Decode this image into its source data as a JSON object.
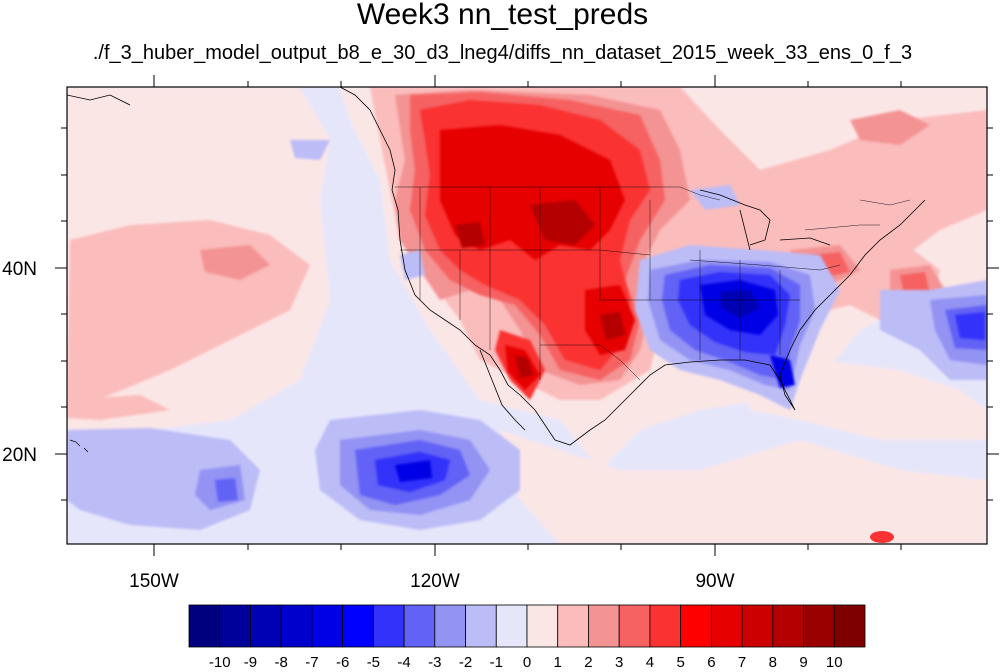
{
  "title": "Week3 nn_test_preds",
  "subtitle": "./f_3_huber_model_output_b8_e_30_d3_lneg4/diffs_nn_dataset_2015_week_33_ens_0_f_3",
  "axes": {
    "lon_ticks": [
      "150W",
      "120W",
      "90W"
    ],
    "lat_ticks": [
      "40N",
      "20N"
    ],
    "lon_range": [
      -159,
      -60
    ],
    "lat_range": [
      10,
      58
    ]
  },
  "colorbar": {
    "labels": [
      "-10",
      "-9",
      "-8",
      "-7",
      "-6",
      "-5",
      "-4",
      "-3",
      "-2",
      "-1",
      "0",
      "1",
      "2",
      "3",
      "4",
      "5",
      "6",
      "7",
      "8",
      "9",
      "10"
    ],
    "colors": [
      "#00007f",
      "#00009a",
      "#0000b4",
      "#0000cd",
      "#0000e6",
      "#0000ff",
      "#3232fa",
      "#6262f6",
      "#9393f4",
      "#bcbcf7",
      "#e6e6fb",
      "#fbe6e6",
      "#fbbcbc",
      "#f49393",
      "#f66262",
      "#fa3232",
      "#ff0000",
      "#e60000",
      "#cd0000",
      "#b40000",
      "#9a0000",
      "#7f0000"
    ]
  },
  "fill_colors": {
    "background": "#e6e6fb",
    "weak_pos": "#fbe6e6",
    "pos2": "#fbbcbc",
    "pos3": "#f49393",
    "pos4": "#f66262",
    "pos5": "#fa3232",
    "pos6": "#e60000",
    "pos8": "#b40000",
    "neg2": "#bcbcf7",
    "neg3": "#9393f4",
    "neg4": "#6262f6",
    "neg5": "#3232fa",
    "neg6": "#0000e6",
    "neg8": "#0000b4"
  }
}
